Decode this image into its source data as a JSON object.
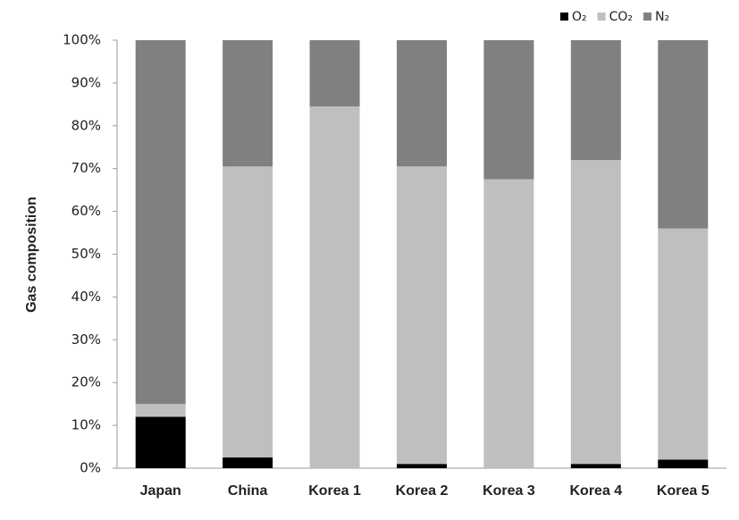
{
  "chart_data": {
    "type": "stacked_bar",
    "y_label": "Gas composition",
    "categories": [
      "Japan",
      "China",
      "Korea 1",
      "Korea 2",
      "Korea 3",
      "Korea 4",
      "Korea 5"
    ],
    "series": [
      {
        "name": "O₂",
        "color": "#000000",
        "values": [
          12,
          2.5,
          0,
          1,
          0,
          1,
          2
        ]
      },
      {
        "name": "CO₂",
        "color": "#bfbfbf",
        "values": [
          3,
          68,
          84.5,
          69.5,
          67.5,
          71,
          54
        ]
      },
      {
        "name": "N₂",
        "color": "#808080",
        "values": [
          85,
          29.5,
          15.5,
          29.5,
          32.5,
          28,
          44
        ]
      }
    ],
    "ylim": [
      0,
      100
    ],
    "yticks": [
      {
        "value": 0,
        "label": "0%"
      },
      {
        "value": 10,
        "label": "10%"
      },
      {
        "value": 20,
        "label": "20%"
      },
      {
        "value": 30,
        "label": "30%"
      },
      {
        "value": 40,
        "label": "40%"
      },
      {
        "value": 50,
        "label": "50%"
      },
      {
        "value": 60,
        "label": "60%"
      },
      {
        "value": 70,
        "label": "70%"
      },
      {
        "value": 80,
        "label": "80%"
      },
      {
        "value": 90,
        "label": "90%"
      },
      {
        "value": 100,
        "label": "100%"
      }
    ],
    "legend": "top-right"
  }
}
